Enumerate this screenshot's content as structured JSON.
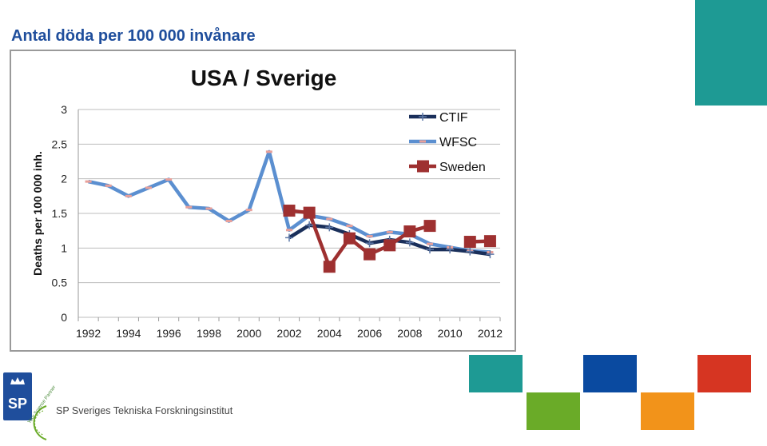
{
  "slide": {
    "title": "Antal döda per 100 000 invånare",
    "org_name": "SP Sveriges Tekniska Forskningsinstitut",
    "logo_text": "SP",
    "seal_text": "Your Science Partner"
  },
  "colors": {
    "title": "#1f4e9c",
    "teal": "#1e9a94",
    "blue": "#0a4aa0",
    "red": "#d63522",
    "green": "#6aab28",
    "orange": "#f2931a",
    "ctif": "#1a2f5a",
    "wfsc": "#5b8fd0",
    "sweden": "#9e3030",
    "wfsc_marker": "#e8a09a"
  },
  "chart_data": {
    "type": "line",
    "title": "USA / Sverige",
    "ylabel": "Deaths per 100 000 inh.",
    "xlabel": "",
    "xlim": [
      1991.5,
      2012.5
    ],
    "ylim": [
      0,
      3
    ],
    "xticks": [
      1992,
      1994,
      1996,
      1998,
      2000,
      2002,
      2004,
      2006,
      2008,
      2010,
      2012
    ],
    "yticks": [
      0,
      0.5,
      1,
      1.5,
      2,
      2.5,
      3
    ],
    "ytick_labels": [
      "0",
      "0.5",
      "1",
      "1.5",
      "2",
      "2.5",
      "3"
    ],
    "grid": true,
    "legend_position": "top-right",
    "series": [
      {
        "name": "CTIF",
        "x": [
          2002,
          2003,
          2004,
          2005,
          2006,
          2007,
          2008,
          2009,
          2010,
          2011,
          2012
        ],
        "y": [
          1.15,
          1.33,
          1.3,
          1.2,
          1.07,
          1.12,
          1.08,
          0.98,
          0.98,
          0.95,
          0.91
        ]
      },
      {
        "name": "WFSC",
        "x": [
          1992,
          1993,
          1994,
          1995,
          1996,
          1997,
          1998,
          1999,
          2000,
          2001,
          2002,
          2003,
          2004,
          2005,
          2006,
          2007,
          2008,
          2009,
          2010,
          2011,
          2012
        ],
        "y": [
          1.96,
          1.9,
          1.75,
          1.87,
          1.99,
          1.59,
          1.57,
          1.39,
          1.55,
          2.39,
          1.26,
          1.47,
          1.42,
          1.32,
          1.17,
          1.23,
          1.2,
          1.06,
          1.01,
          0.96,
          0.94
        ]
      },
      {
        "name": "Sweden",
        "x": [
          2002,
          2003,
          2004,
          2005,
          2006,
          2007,
          2008,
          2009,
          2010,
          2011,
          2012
        ],
        "y": [
          1.54,
          1.51,
          0.73,
          1.14,
          0.91,
          1.04,
          1.24,
          1.32,
          null,
          1.09,
          1.1
        ]
      }
    ]
  }
}
